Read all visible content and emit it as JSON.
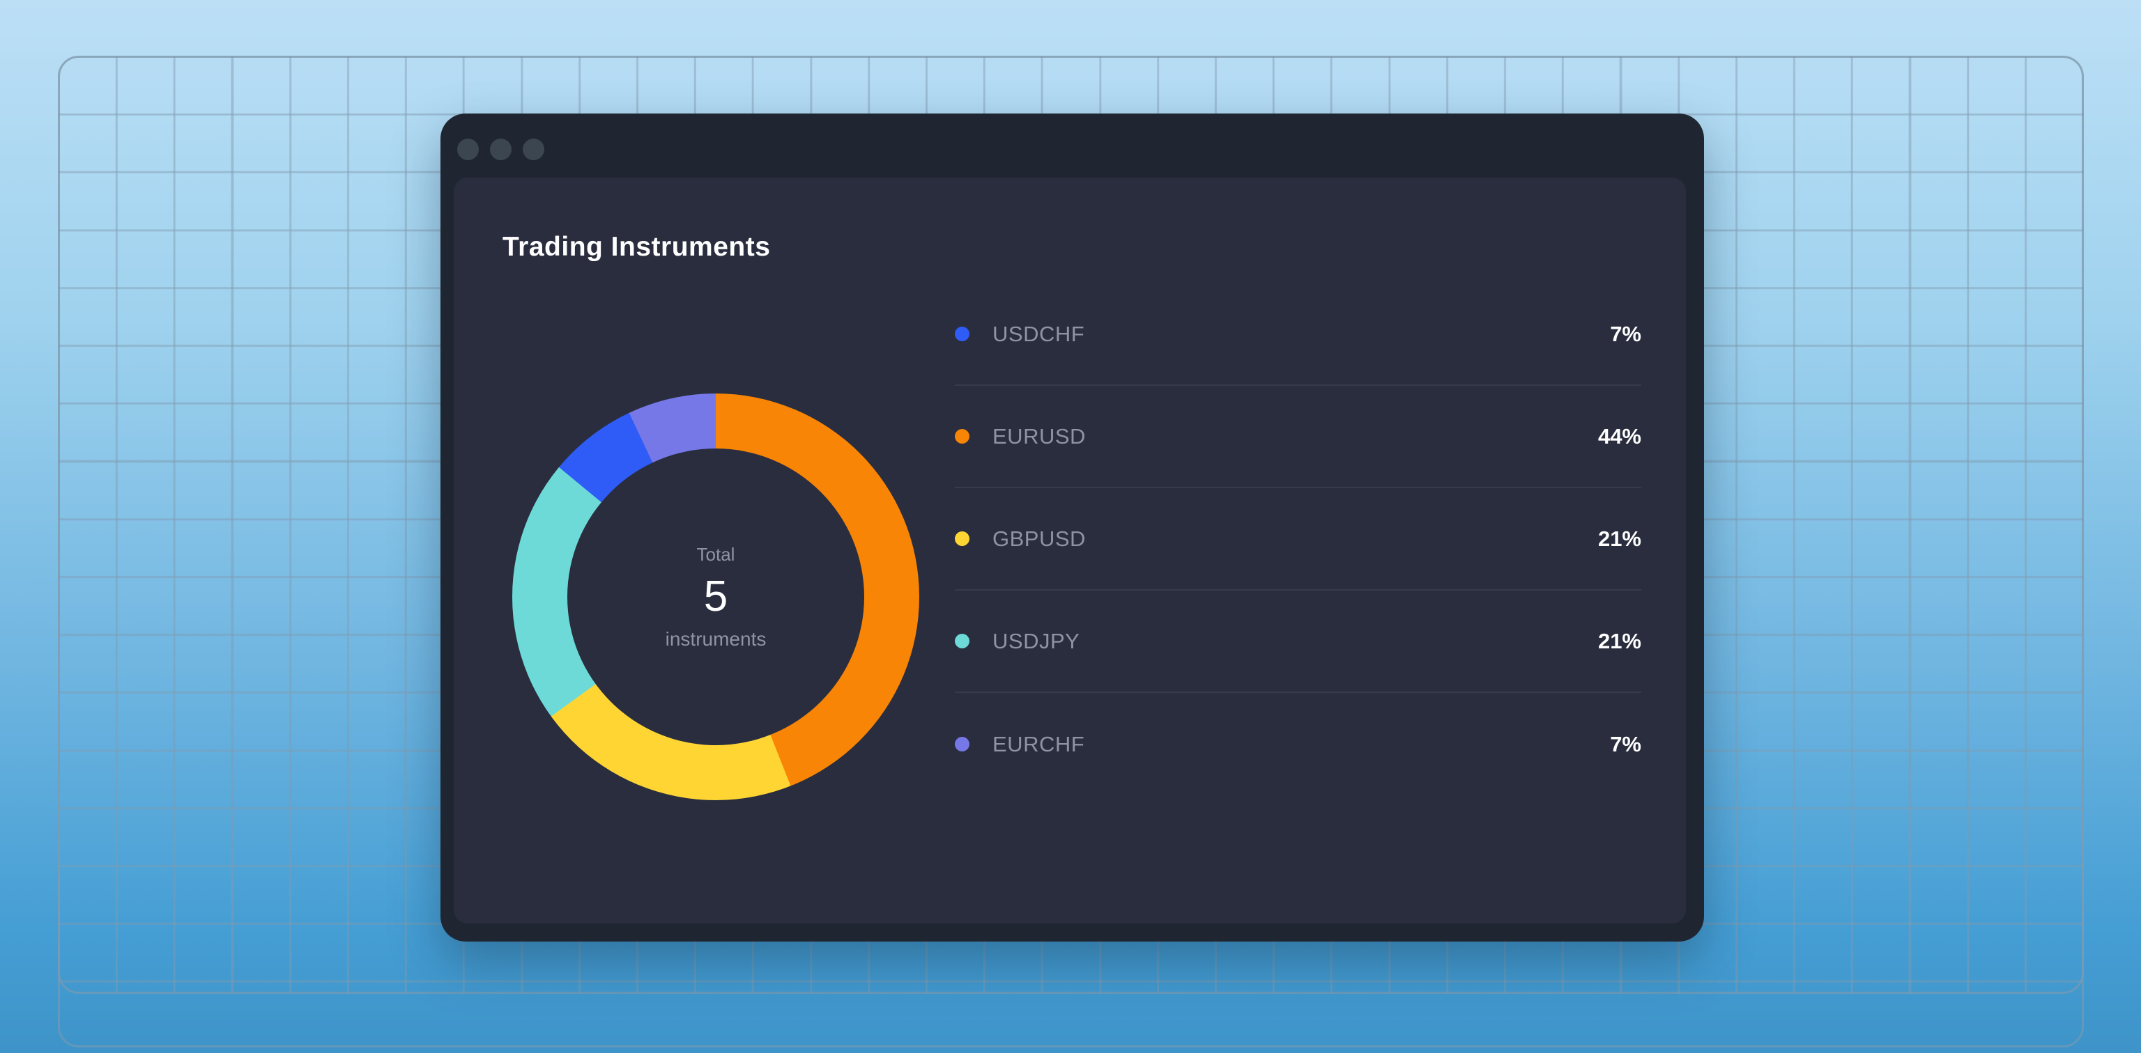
{
  "window": {
    "controls": [
      "close",
      "minimize",
      "maximize"
    ]
  },
  "card": {
    "title": "Trading Instruments"
  },
  "chart_data": {
    "type": "pie",
    "subtype": "donut",
    "title": "Trading Instruments",
    "categories": [
      "USDCHF",
      "EURUSD",
      "GBPUSD",
      "USDJPY",
      "EURCHF"
    ],
    "values": [
      7,
      44,
      21,
      21,
      7
    ],
    "unit": "%",
    "legend_position": "right",
    "center": {
      "label": "Total",
      "value": "5",
      "sublabel": "instruments"
    },
    "segments_clockwise_from_top": [
      {
        "label": "EURUSD",
        "value": 44,
        "color": "#F98506"
      },
      {
        "label": "GBPUSD",
        "value": 21,
        "color": "#FED533"
      },
      {
        "label": "USDJPY",
        "value": 21,
        "color": "#6EDAD8"
      },
      {
        "label": "USDCHF",
        "value": 7,
        "color": "#2F5CF6"
      },
      {
        "label": "EURCHF",
        "value": 7,
        "color": "#7678E8"
      }
    ]
  },
  "legend": {
    "items": [
      {
        "label": "USDCHF",
        "value": 7,
        "value_label": "7%",
        "color": "#2F5CF6"
      },
      {
        "label": "EURUSD",
        "value": 44,
        "value_label": "44%",
        "color": "#F98506"
      },
      {
        "label": "GBPUSD",
        "value": 21,
        "value_label": "21%",
        "color": "#FED533"
      },
      {
        "label": "USDJPY",
        "value": 21,
        "value_label": "21%",
        "color": "#6EDAD8"
      },
      {
        "label": "EURCHF",
        "value": 7,
        "value_label": "7%",
        "color": "#7678E8"
      }
    ]
  },
  "colors": {
    "background_top": "#BCDFF6",
    "background_bottom": "#3E94C9",
    "window_frame": "#202631",
    "card_background": "#292D3E",
    "text_primary": "#FFFFFF",
    "text_muted": "#8F93A3"
  }
}
